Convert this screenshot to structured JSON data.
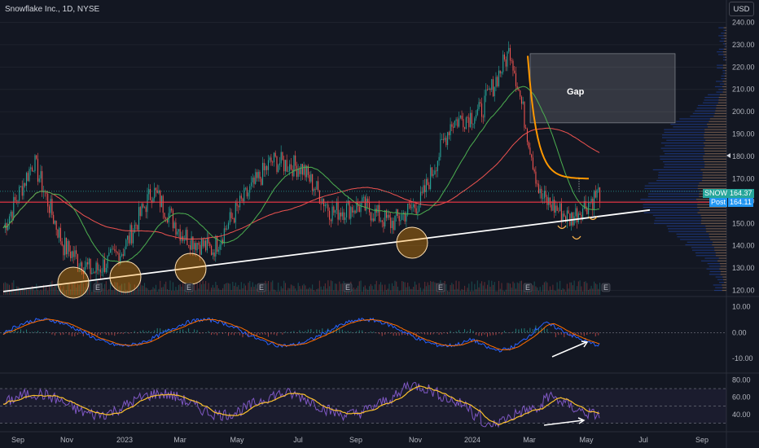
{
  "header": {
    "title": "Snowflake Inc., 1D, NYSE",
    "currency_button": "USD"
  },
  "annotations": {
    "gap_label": "Gap",
    "earnings_marker": "E"
  },
  "price_tags": {
    "symbol_label": "SNOW",
    "symbol_price": "164.37",
    "post_label": "Post",
    "post_price": "164.11"
  },
  "colors": {
    "background": "#131722",
    "candle_up": "#26a69a",
    "candle_down": "#ef5350",
    "ma_red": "#ef5350",
    "ma_green": "#4caf50",
    "horizontal_line": "#f23645",
    "trendline": "#ffffff",
    "macd_line": "#2962ff",
    "signal_line": "#ff6d00",
    "rsi_line": "#7e57c2",
    "rsi_ma": "#fbc02d",
    "volume_profile": "#2962ff",
    "vwap_orange": "#ff9800"
  },
  "chart_data": [
    {
      "type": "candlestick",
      "name": "price",
      "x_ticks": [
        "Sep",
        "Nov",
        "2023",
        "Mar",
        "May",
        "Jul",
        "Sep",
        "Nov",
        "2024",
        "Mar",
        "May",
        "Jul",
        "Sep"
      ],
      "y_ticks": [
        "120.00",
        "130.00",
        "140.00",
        "150.00",
        "160.00",
        "170.00",
        "180.00",
        "190.00",
        "200.00",
        "210.00",
        "220.00",
        "230.00",
        "240.00"
      ],
      "ylim": [
        118,
        242
      ],
      "horizontal_line": 159.5,
      "gap_zone": [
        195,
        226
      ],
      "last_price": 164.37,
      "post_price": 164.11,
      "approx_closes": [
        {
          "x": "Sep 2022",
          "y": 148
        },
        {
          "x": "Oct 2022",
          "y": 178
        },
        {
          "x": "Nov 2022",
          "y": 140
        },
        {
          "x": "Dec 2022",
          "y": 128
        },
        {
          "x": "Jan 2023",
          "y": 138
        },
        {
          "x": "Feb 2023",
          "y": 165
        },
        {
          "x": "Mar 2023",
          "y": 145
        },
        {
          "x": "Apr 2023",
          "y": 138
        },
        {
          "x": "May 2023",
          "y": 160
        },
        {
          "x": "Jun 2023",
          "y": 178
        },
        {
          "x": "Jul 2023",
          "y": 175
        },
        {
          "x": "Aug 2023",
          "y": 155
        },
        {
          "x": "Sep 2023",
          "y": 158
        },
        {
          "x": "Oct 2023",
          "y": 150
        },
        {
          "x": "Nov 2023",
          "y": 160
        },
        {
          "x": "Dec 2023",
          "y": 195
        },
        {
          "x": "Jan 2024",
          "y": 200
        },
        {
          "x": "Feb 2024",
          "y": 228
        },
        {
          "x": "Mar 2024",
          "y": 162
        },
        {
          "x": "Apr 2024",
          "y": 152
        },
        {
          "x": "May 2024",
          "y": 164
        }
      ]
    },
    {
      "type": "line",
      "name": "macd",
      "y_ticks": [
        "10.00",
        "0.00",
        "-10.00"
      ],
      "ylim": [
        -15,
        14
      ]
    },
    {
      "type": "line",
      "name": "rsi",
      "y_ticks": [
        "80.00",
        "60.00",
        "40.00"
      ],
      "ylim": [
        22,
        88
      ],
      "bands": [
        70,
        50,
        30
      ]
    }
  ]
}
